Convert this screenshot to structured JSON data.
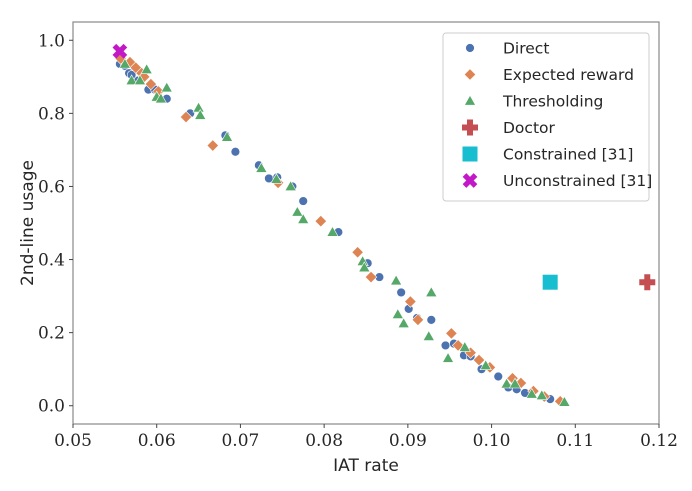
{
  "chart_data": {
    "type": "scatter",
    "title": "",
    "xlabel": "IAT rate",
    "ylabel": "2nd-line usage",
    "xlim": [
      0.05,
      0.12
    ],
    "ylim": [
      -0.05,
      1.05
    ],
    "xticks": [
      "0.05",
      "0.06",
      "0.07",
      "0.08",
      "0.09",
      "0.10",
      "0.11",
      "0.12"
    ],
    "xtick_values": [
      0.05,
      0.06,
      0.07,
      0.08,
      0.09,
      0.1,
      0.11,
      0.12
    ],
    "yticks": [
      "0.0",
      "0.2",
      "0.4",
      "0.6",
      "0.8",
      "1.0"
    ],
    "ytick_values": [
      0.0,
      0.2,
      0.4,
      0.6,
      0.8,
      1.0
    ],
    "grid": false,
    "legend_position": "top-right",
    "series": [
      {
        "name": "Direct",
        "color": "#4C72B0",
        "marker": "circle",
        "points": [
          [
            0.0556,
            0.935
          ],
          [
            0.0562,
            0.93
          ],
          [
            0.0567,
            0.91
          ],
          [
            0.057,
            0.905
          ],
          [
            0.0578,
            0.89
          ],
          [
            0.059,
            0.865
          ],
          [
            0.0598,
            0.865
          ],
          [
            0.0612,
            0.84
          ],
          [
            0.064,
            0.8
          ],
          [
            0.0682,
            0.74
          ],
          [
            0.0694,
            0.695
          ],
          [
            0.0722,
            0.658
          ],
          [
            0.0734,
            0.622
          ],
          [
            0.0744,
            0.625
          ],
          [
            0.0762,
            0.6
          ],
          [
            0.0775,
            0.56
          ],
          [
            0.0817,
            0.475
          ],
          [
            0.0852,
            0.39
          ],
          [
            0.0866,
            0.352
          ],
          [
            0.0892,
            0.31
          ],
          [
            0.0901,
            0.265
          ],
          [
            0.0911,
            0.24
          ],
          [
            0.0928,
            0.235
          ],
          [
            0.0945,
            0.165
          ],
          [
            0.0955,
            0.17
          ],
          [
            0.0967,
            0.138
          ],
          [
            0.0975,
            0.135
          ],
          [
            0.0988,
            0.1
          ],
          [
            0.1008,
            0.08
          ],
          [
            0.102,
            0.05
          ],
          [
            0.103,
            0.045
          ],
          [
            0.104,
            0.035
          ],
          [
            0.107,
            0.018
          ]
        ]
      },
      {
        "name": "Expected reward",
        "color": "#DD8452",
        "marker": "diamond",
        "points": [
          [
            0.0557,
            0.95
          ],
          [
            0.0568,
            0.94
          ],
          [
            0.0575,
            0.925
          ],
          [
            0.0582,
            0.91
          ],
          [
            0.0585,
            0.9
          ],
          [
            0.0593,
            0.88
          ],
          [
            0.0602,
            0.86
          ],
          [
            0.0635,
            0.79
          ],
          [
            0.0667,
            0.712
          ],
          [
            0.0745,
            0.61
          ],
          [
            0.0796,
            0.505
          ],
          [
            0.084,
            0.42
          ],
          [
            0.0856,
            0.352
          ],
          [
            0.0903,
            0.285
          ],
          [
            0.0912,
            0.235
          ],
          [
            0.0952,
            0.198
          ],
          [
            0.096,
            0.165
          ],
          [
            0.0975,
            0.145
          ],
          [
            0.0985,
            0.125
          ],
          [
            0.0998,
            0.105
          ],
          [
            0.1025,
            0.075
          ],
          [
            0.1035,
            0.062
          ],
          [
            0.105,
            0.04
          ],
          [
            0.1063,
            0.025
          ],
          [
            0.1082,
            0.012
          ]
        ]
      },
      {
        "name": "Thresholding",
        "color": "#55A868",
        "marker": "triangle",
        "points": [
          [
            0.0562,
            0.935
          ],
          [
            0.057,
            0.89
          ],
          [
            0.058,
            0.89
          ],
          [
            0.0588,
            0.92
          ],
          [
            0.06,
            0.845
          ],
          [
            0.0605,
            0.84
          ],
          [
            0.0612,
            0.87
          ],
          [
            0.065,
            0.815
          ],
          [
            0.0652,
            0.795
          ],
          [
            0.0684,
            0.735
          ],
          [
            0.0725,
            0.65
          ],
          [
            0.0743,
            0.62
          ],
          [
            0.076,
            0.6
          ],
          [
            0.0768,
            0.53
          ],
          [
            0.0775,
            0.51
          ],
          [
            0.081,
            0.475
          ],
          [
            0.0846,
            0.395
          ],
          [
            0.0848,
            0.378
          ],
          [
            0.0886,
            0.342
          ],
          [
            0.0888,
            0.25
          ],
          [
            0.0895,
            0.225
          ],
          [
            0.0925,
            0.19
          ],
          [
            0.0928,
            0.31
          ],
          [
            0.0948,
            0.13
          ],
          [
            0.0968,
            0.16
          ],
          [
            0.0993,
            0.11
          ],
          [
            0.1018,
            0.06
          ],
          [
            0.1028,
            0.06
          ],
          [
            0.1048,
            0.032
          ],
          [
            0.106,
            0.028
          ],
          [
            0.1087,
            0.01
          ]
        ]
      },
      {
        "name": "Doctor",
        "color": "#C44E52",
        "marker": "plus",
        "points": [
          [
            0.1186,
            0.338
          ]
        ]
      },
      {
        "name": "Constrained [31]",
        "color": "#17BECF",
        "marker": "square",
        "points": [
          [
            0.107,
            0.338
          ]
        ]
      },
      {
        "name": "Unconstrained [31]",
        "color": "#C218C8",
        "marker": "x",
        "points": [
          [
            0.0556,
            0.97
          ]
        ]
      }
    ]
  }
}
